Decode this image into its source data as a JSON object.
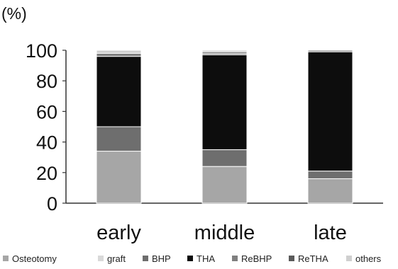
{
  "chart_data": {
    "type": "bar",
    "stacked": true,
    "orientation": "vertical",
    "title": "",
    "xlabel": "",
    "ylabel": "(%)",
    "ylim": [
      0,
      100
    ],
    "yticks": [
      "0",
      "20",
      "40",
      "60",
      "80",
      "100"
    ],
    "categories": [
      "early",
      "middle",
      "late"
    ],
    "grid": false,
    "legend_position": "bottom",
    "series": [
      {
        "name": "Osteotomy",
        "color": "#a6a6a6",
        "values": [
          34,
          24,
          16
        ]
      },
      {
        "name": "graft",
        "color": "#d9d9d9",
        "values": [
          0,
          0,
          0
        ]
      },
      {
        "name": "BHP",
        "color": "#6e6e6e",
        "values": [
          16,
          11,
          5
        ]
      },
      {
        "name": "THA",
        "color": "#0d0d0d",
        "values": [
          46,
          62,
          78
        ]
      },
      {
        "name": "ReBHP",
        "color": "#7f7f7f",
        "values": [
          2,
          1,
          1
        ]
      },
      {
        "name": "ReTHA",
        "color": "#5a5a5a",
        "values": [
          0,
          1,
          0
        ]
      },
      {
        "name": "others",
        "color": "#cfcfcf",
        "values": [
          2,
          1,
          0
        ]
      }
    ]
  }
}
